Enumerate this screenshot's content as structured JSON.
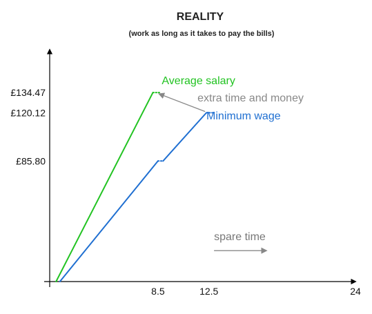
{
  "chart_data": {
    "type": "line",
    "title": "REALITY",
    "subtitle": "(work as long as it takes to pay the bills)",
    "xlabel": "",
    "ylabel": "",
    "xlim": [
      0,
      24
    ],
    "ylim": [
      0,
      165
    ],
    "x_ticks": [
      {
        "value": 8.5,
        "label": "8.5"
      },
      {
        "value": 12.5,
        "label": "12.5"
      },
      {
        "value": 24,
        "label": "24"
      }
    ],
    "y_ticks": [
      {
        "value": 134.47,
        "label": "£134.47"
      },
      {
        "value": 120.12,
        "label": "£120.12"
      },
      {
        "value": 85.8,
        "label": "£85.80"
      }
    ],
    "grid": false,
    "series": [
      {
        "name": "Average salary",
        "color": "#22c322",
        "points": [
          {
            "x": 0.5,
            "y": 0
          },
          {
            "x": 8.1,
            "y": 134.47
          }
        ],
        "dotted": [
          {
            "x": 8.1,
            "y": 134.47
          },
          {
            "x": 8.7,
            "y": 134.47
          }
        ]
      },
      {
        "name": "Minimum wage",
        "color": "#1f6fd1",
        "segments": [
          [
            {
              "x": 0.8,
              "y": 0
            },
            {
              "x": 8.5,
              "y": 85.8
            }
          ],
          [
            {
              "x": 8.9,
              "y": 85.8
            },
            {
              "x": 12.3,
              "y": 120.12
            }
          ]
        ],
        "dotted": [
          [
            {
              "x": 8.5,
              "y": 85.8
            },
            {
              "x": 8.9,
              "y": 85.8
            }
          ],
          [
            {
              "x": 12.3,
              "y": 120.12
            },
            {
              "x": 12.8,
              "y": 120.12
            }
          ]
        ]
      }
    ],
    "annotations": [
      {
        "id": "average",
        "text": "Average salary",
        "color": "#22c322",
        "x": 8.8,
        "y": 140.5
      },
      {
        "id": "extra",
        "text": "extra time and money",
        "color": "#888888",
        "x": 11.6,
        "y": 128.2
      },
      {
        "id": "minimum",
        "text": "Minimum wage",
        "color": "#1f6fd1",
        "x": 12.3,
        "y": 115.4
      },
      {
        "id": "spare",
        "text": "spare time",
        "color": "#777777",
        "x": 12.9,
        "y": 29.5
      }
    ],
    "arrows": [
      {
        "id": "extra-arrow",
        "color": "#888888",
        "from": {
          "x": 12.2,
          "y": 121.0
        },
        "to": {
          "x": 8.6,
          "y": 133.5
        }
      },
      {
        "id": "spare-arrow",
        "color": "#888888",
        "from": {
          "x": 12.9,
          "y": 22.0
        },
        "to": {
          "x": 17.0,
          "y": 22.0
        }
      }
    ]
  }
}
